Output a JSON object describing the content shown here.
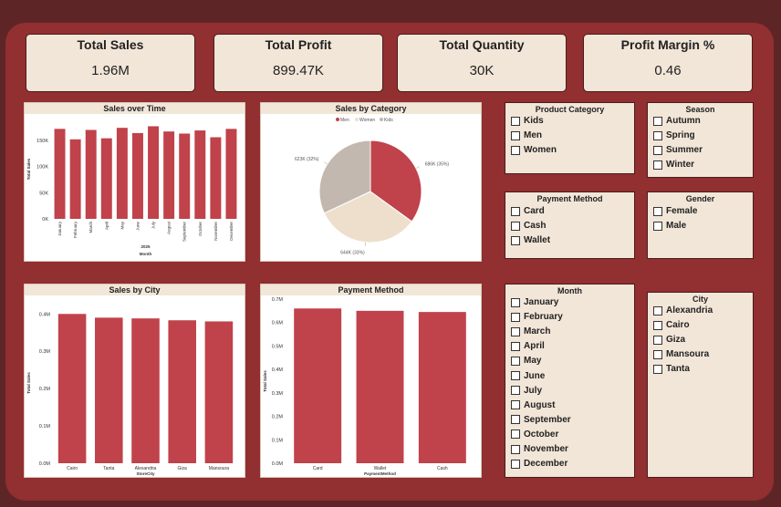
{
  "kpis": [
    {
      "label": "Total Sales",
      "value": "1.96M"
    },
    {
      "label": "Total Profit",
      "value": "899.47K"
    },
    {
      "label": "Total Quantity",
      "value": "30K"
    },
    {
      "label": "Profit Margin %",
      "value": "0.46"
    }
  ],
  "colors": {
    "bar": "#c0424a",
    "pie_men": "#c0424a",
    "pie_women": "#eedfcc",
    "pie_kids": "#c2b8b0",
    "slicer_bg": "#f2e6d8"
  },
  "chart_data": [
    {
      "type": "bar",
      "title": "Sales over Time",
      "categories": [
        "January",
        "February",
        "March",
        "April",
        "May",
        "June",
        "July",
        "August",
        "September",
        "October",
        "November",
        "December"
      ],
      "values": [
        172,
        152,
        170,
        154,
        174,
        164,
        177,
        167,
        163,
        169,
        156,
        172
      ],
      "ylim": [
        0,
        190
      ],
      "yticks": [
        0,
        50,
        100,
        150
      ],
      "ytick_labels": [
        "0K",
        "50K",
        "100K",
        "150K"
      ],
      "xgroup_label": "2025",
      "xlabel": "Month",
      "ylabel": "Total Sales"
    },
    {
      "type": "pie",
      "title": "Sales by Category",
      "legend": [
        "Men",
        "Women",
        "Kids"
      ],
      "values": [
        35,
        33,
        32
      ],
      "data_labels": [
        "686K (35%)",
        "644K (33%)",
        "623K (32%)"
      ]
    },
    {
      "type": "bar",
      "title": "Sales by City",
      "categories": [
        "Cairo",
        "Tanta",
        "Alexandria",
        "Giza",
        "Mansoura"
      ],
      "values": [
        0.4,
        0.39,
        0.388,
        0.383,
        0.38
      ],
      "ylim": [
        0,
        0.43
      ],
      "yticks": [
        0,
        0.1,
        0.2,
        0.3,
        0.4
      ],
      "ytick_labels": [
        "0.0M",
        "0.1M",
        "0.2M",
        "0.3M",
        "0.4M"
      ],
      "xlabel": "StoreCity",
      "ylabel": "Total Sales"
    },
    {
      "type": "bar",
      "title": "Payment Method",
      "categories": [
        "Card",
        "Wallet",
        "Cash"
      ],
      "values": [
        0.66,
        0.65,
        0.645
      ],
      "ylim": [
        0,
        0.7
      ],
      "yticks": [
        0,
        0.1,
        0.2,
        0.3,
        0.4,
        0.5,
        0.6,
        0.7
      ],
      "ytick_labels": [
        "0.0M",
        "0.1M",
        "0.2M",
        "0.3M",
        "0.4M",
        "0.5M",
        "0.6M",
        "0.7M"
      ],
      "xlabel": "PaymentMethod",
      "ylabel": "Total Sales"
    }
  ],
  "slicers": [
    {
      "title": "Product Category",
      "items": [
        "Kids",
        "Men",
        "Women"
      ]
    },
    {
      "title": "Season",
      "items": [
        "Autumn",
        "Spring",
        "Summer",
        "Winter"
      ]
    },
    {
      "title": "Payment Method",
      "items": [
        "Card",
        "Cash",
        "Wallet"
      ]
    },
    {
      "title": "Gender",
      "items": [
        "Female",
        "Male"
      ]
    },
    {
      "title": "Month",
      "items": [
        "January",
        "February",
        "March",
        "April",
        "May",
        "June",
        "July",
        "August",
        "September",
        "October",
        "November",
        "December"
      ]
    },
    {
      "title": "City",
      "items": [
        "Alexandria",
        "Cairo",
        "Giza",
        "Mansoura",
        "Tanta"
      ]
    }
  ]
}
